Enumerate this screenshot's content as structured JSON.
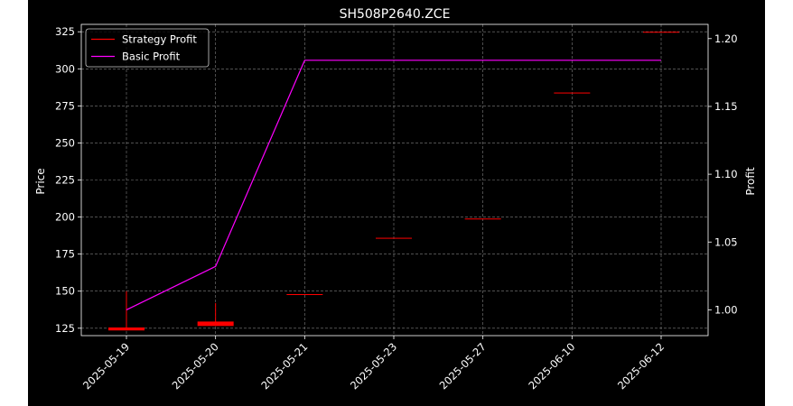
{
  "chart_data": {
    "type": "candlestick+line",
    "title": "SH508P2640.ZCE",
    "xlabel": "",
    "ylabel_left": "Price",
    "ylabel_right": "Profit",
    "categories": [
      "2025-05-19",
      "2025-05-20",
      "2025-05-21",
      "2025-05-23",
      "2025-05-27",
      "2025-06-10",
      "2025-06-12"
    ],
    "ylim_left": [
      120,
      330
    ],
    "yticks_left": [
      125,
      150,
      175,
      200,
      225,
      250,
      275,
      300,
      325
    ],
    "ylim_right": [
      0.981,
      1.2105
    ],
    "yticks_right": [
      "1.00",
      "1.05",
      "1.10",
      "1.15",
      "1.20"
    ],
    "candles": [
      {
        "date": "2025-05-19",
        "open": 125.5,
        "close": 123.5,
        "high": 150.0,
        "low": 123.5
      },
      {
        "date": "2025-05-20",
        "open": 129.5,
        "close": 126.5,
        "high": 142.0,
        "low": 126.5
      },
      {
        "date": "2025-05-21",
        "open": 148.0,
        "close": 148.0,
        "high": 148.0,
        "low": 148.0
      },
      {
        "date": "2025-05-23",
        "open": 186.0,
        "close": 186.0,
        "high": 186.0,
        "low": 186.0
      },
      {
        "date": "2025-05-27",
        "open": 199.0,
        "close": 199.0,
        "high": 199.0,
        "low": 199.0
      },
      {
        "date": "2025-06-10",
        "open": 284.0,
        "close": 284.0,
        "high": 284.0,
        "low": 284.0
      },
      {
        "date": "2025-06-12",
        "open": 325.0,
        "close": 325.0,
        "high": 325.0,
        "low": 325.0
      }
    ],
    "series": [
      {
        "name": "Strategy Profit",
        "color": "#ff0000",
        "values": [
          null,
          null,
          null,
          null,
          null,
          null,
          null
        ]
      },
      {
        "name": "Basic Profit",
        "color": "#ff00ff",
        "values": [
          1.0,
          1.032,
          1.184,
          1.184,
          1.184,
          1.184,
          1.184
        ]
      }
    ],
    "legend_position": "top-left",
    "grid": true
  }
}
